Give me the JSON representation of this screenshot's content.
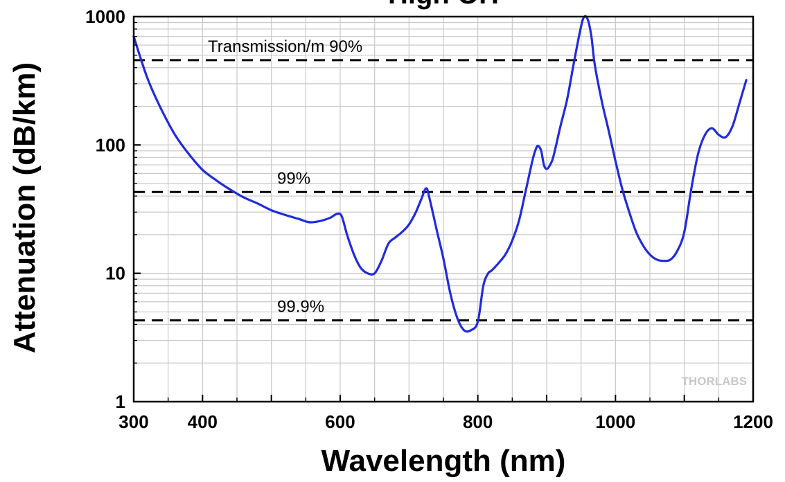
{
  "chart_data": {
    "type": "line",
    "title": "High OH",
    "xlabel": "Wavelength (nm)",
    "ylabel": "Attenuation (dB/km)",
    "xlim": [
      300,
      1200
    ],
    "ylim": [
      1,
      1000
    ],
    "yscale": "log",
    "grid": true,
    "x_ticks": [
      300,
      400,
      600,
      800,
      1000,
      1200
    ],
    "y_ticks": [
      1,
      10,
      100,
      1000
    ],
    "watermark": "THORLABS",
    "line_color": "#1f2bdc",
    "series": [
      {
        "x": [
          300,
          320,
          340,
          360,
          380,
          400,
          420,
          440,
          460,
          480,
          500,
          520,
          540,
          555,
          570,
          585,
          595,
          602,
          610,
          620,
          630,
          640,
          650,
          660,
          670,
          680,
          690,
          700,
          710,
          718,
          725,
          730,
          740,
          750,
          760,
          770,
          780,
          790,
          800,
          808,
          815,
          820,
          830,
          840,
          850,
          860,
          870,
          880,
          885,
          888,
          892,
          896,
          900,
          905,
          910,
          920,
          930,
          940,
          950,
          955,
          960,
          965,
          970,
          980,
          990,
          1000,
          1010,
          1020,
          1030,
          1040,
          1050,
          1060,
          1070,
          1080,
          1090,
          1100,
          1110,
          1120,
          1130,
          1140,
          1150,
          1160,
          1170,
          1180,
          1190
        ],
        "y": [
          700,
          330,
          190,
          120,
          85,
          64,
          53,
          45,
          39,
          35,
          31,
          28.5,
          26.5,
          25,
          25.5,
          27,
          29,
          28,
          20,
          14,
          11,
          10,
          10,
          12.5,
          17,
          19,
          21,
          24,
          30,
          38,
          46,
          38,
          22,
          13,
          7,
          4.5,
          3.6,
          3.6,
          4.2,
          8,
          10,
          10.5,
          12,
          14,
          18,
          26,
          45,
          78,
          95,
          98,
          90,
          70,
          65,
          70,
          82,
          140,
          230,
          450,
          840,
          1000,
          940,
          700,
          420,
          220,
          130,
          75,
          45,
          30,
          21,
          16.5,
          14,
          12.8,
          12.5,
          12.8,
          15,
          21,
          45,
          85,
          120,
          135,
          120,
          115,
          140,
          210,
          320
        ]
      }
    ],
    "reference_lines": [
      {
        "label": "Transmission/m 90%",
        "y": 458
      },
      {
        "label": "99%",
        "y": 43
      },
      {
        "label": "99.9%",
        "y": 4.3
      }
    ]
  }
}
